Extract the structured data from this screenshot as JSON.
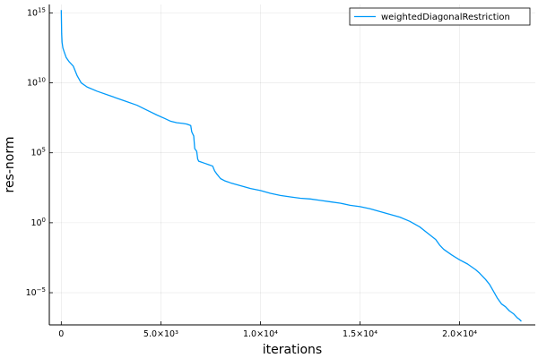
{
  "chart_data": {
    "type": "line",
    "xlabel": "iterations",
    "ylabel": "res-norm",
    "y_scale": "log10",
    "xlim": [
      -600,
      23800
    ],
    "ylim_log10": [
      -7.3,
      15.6
    ],
    "grid": true,
    "legend_position": "top-right",
    "x_ticks": [
      {
        "value": 0,
        "label": "0"
      },
      {
        "value": 5000,
        "label": "5.0×10³"
      },
      {
        "value": 10000,
        "label": "1.0×10⁴"
      },
      {
        "value": 15000,
        "label": "1.5×10⁴"
      },
      {
        "value": 20000,
        "label": "2.0×10⁴"
      }
    ],
    "y_ticks": [
      {
        "log10": 15,
        "base": "10",
        "exp": "15"
      },
      {
        "log10": 10,
        "base": "10",
        "exp": "10"
      },
      {
        "log10": 5,
        "base": "10",
        "exp": "5"
      },
      {
        "log10": 0,
        "base": "10",
        "exp": "0"
      },
      {
        "log10": -5,
        "base": "10",
        "exp": "−5"
      }
    ],
    "series": [
      {
        "name": "weightedDiagonalRestriction",
        "color": "#009AFA",
        "x": [
          0,
          20,
          40,
          80,
          150,
          250,
          400,
          600,
          800,
          1000,
          1300,
          1800,
          2500,
          3200,
          3800,
          4300,
          4800,
          5200,
          5500,
          5800,
          6100,
          6300,
          6500,
          6550,
          6650,
          6700,
          6800,
          6850,
          6900,
          7000,
          7200,
          7400,
          7600,
          7700,
          7800,
          8000,
          8200,
          8500,
          9000,
          9500,
          10000,
          10500,
          11000,
          11500,
          12000,
          12500,
          13000,
          13500,
          14000,
          14500,
          15000,
          15500,
          16000,
          16500,
          17000,
          17500,
          18000,
          18400,
          18800,
          19000,
          19200,
          19600,
          20000,
          20400,
          20800,
          21000,
          21300,
          21500,
          21700,
          21900,
          22100,
          22300,
          22500,
          22700,
          22900,
          23000,
          23100
        ],
        "y_log10": [
          15.2,
          13.5,
          12.9,
          12.5,
          12.2,
          11.8,
          11.5,
          11.2,
          10.5,
          10.0,
          9.7,
          9.4,
          9.05,
          8.7,
          8.4,
          8.05,
          7.7,
          7.45,
          7.25,
          7.15,
          7.1,
          7.05,
          6.95,
          6.5,
          6.2,
          5.3,
          5.1,
          4.55,
          4.4,
          4.35,
          4.25,
          4.15,
          4.05,
          3.7,
          3.5,
          3.15,
          3.0,
          2.85,
          2.65,
          2.45,
          2.3,
          2.1,
          1.95,
          1.85,
          1.75,
          1.7,
          1.6,
          1.5,
          1.4,
          1.25,
          1.15,
          1.0,
          0.8,
          0.6,
          0.4,
          0.1,
          -0.3,
          -0.75,
          -1.2,
          -1.6,
          -1.9,
          -2.3,
          -2.65,
          -2.95,
          -3.35,
          -3.6,
          -4.05,
          -4.4,
          -4.9,
          -5.4,
          -5.8,
          -6.0,
          -6.3,
          -6.5,
          -6.8,
          -6.9,
          -7.05
        ]
      }
    ]
  }
}
